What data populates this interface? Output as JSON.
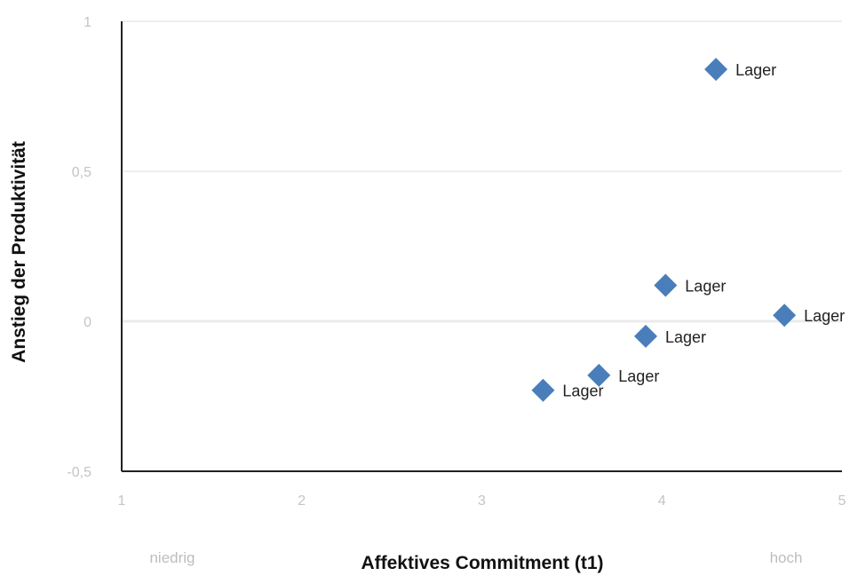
{
  "chart_data": {
    "type": "scatter",
    "title": "",
    "xlabel": "Affektives Commitment (t1)",
    "ylabel": "Anstieg der Produktivität",
    "xlim": [
      1,
      5
    ],
    "ylim": [
      -0.5,
      1
    ],
    "x_ticks": [
      {
        "value": 1,
        "label": "1"
      },
      {
        "value": 2,
        "label": "2"
      },
      {
        "value": 3,
        "label": "3"
      },
      {
        "value": 4,
        "label": "4"
      },
      {
        "value": 5,
        "label": "5"
      }
    ],
    "y_ticks": [
      {
        "value": -0.5,
        "label": "-0,5"
      },
      {
        "value": 0,
        "label": "0"
      },
      {
        "value": 0.5,
        "label": "0,5"
      },
      {
        "value": 1,
        "label": "1"
      }
    ],
    "x_annotations": {
      "low": "niedrig",
      "high": "hoch"
    },
    "grid": true,
    "marker": "diamond",
    "color": "#4a7ebb",
    "points": [
      {
        "x": 4.3,
        "y": 0.84,
        "label": "Lager"
      },
      {
        "x": 4.02,
        "y": 0.12,
        "label": "Lager"
      },
      {
        "x": 4.68,
        "y": 0.02,
        "label": "Lager"
      },
      {
        "x": 3.91,
        "y": -0.05,
        "label": "Lager"
      },
      {
        "x": 3.65,
        "y": -0.18,
        "label": "Lager"
      },
      {
        "x": 3.34,
        "y": -0.23,
        "label": "Lager"
      }
    ]
  }
}
